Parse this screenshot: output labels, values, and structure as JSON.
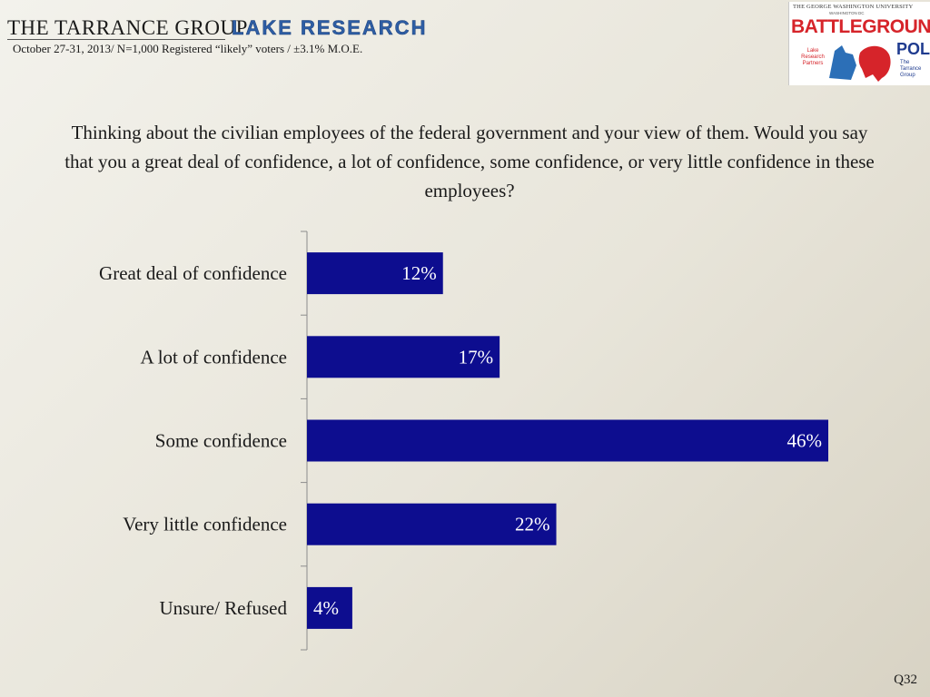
{
  "header": {
    "tarrance_group": "THE TARRANCE GROUP",
    "lake_research": "LAKE RESEARCH",
    "survey_info": "October 27-31, 2013/ N=1,000 Registered “likely” voters / ±3.1% M.O.E."
  },
  "logo": {
    "university": "THE GEORGE WASHINGTON UNIVERSITY",
    "city": "WASHINGTON DC",
    "battleground": "BATTLEGROUND",
    "poll": "POLL",
    "lake_research_partners": "Lake Research Partners",
    "tarrance_group": "The Tarrance Group"
  },
  "question": "Thinking about the civilian employees of the federal government and your view of them.  Would you say that you a great deal of confidence, a lot of confidence, some confidence, or very little confidence in these employees?",
  "footer": {
    "question_number": "Q32"
  },
  "colors": {
    "bar": "#0d0d8f",
    "axis": "#8c8c8c",
    "label": "#1a1a1a"
  },
  "chart_data": {
    "type": "bar",
    "orientation": "horizontal",
    "title": "",
    "xlabel": "",
    "ylabel": "",
    "xlim": [
      0,
      50
    ],
    "categories": [
      "Great deal of confidence",
      "A lot of confidence",
      "Some confidence",
      "Very little confidence",
      "Unsure/ Refused"
    ],
    "values": [
      12,
      17,
      46,
      22,
      4
    ],
    "data_labels": [
      "12%",
      "17%",
      "46%",
      "22%",
      "4%"
    ]
  }
}
